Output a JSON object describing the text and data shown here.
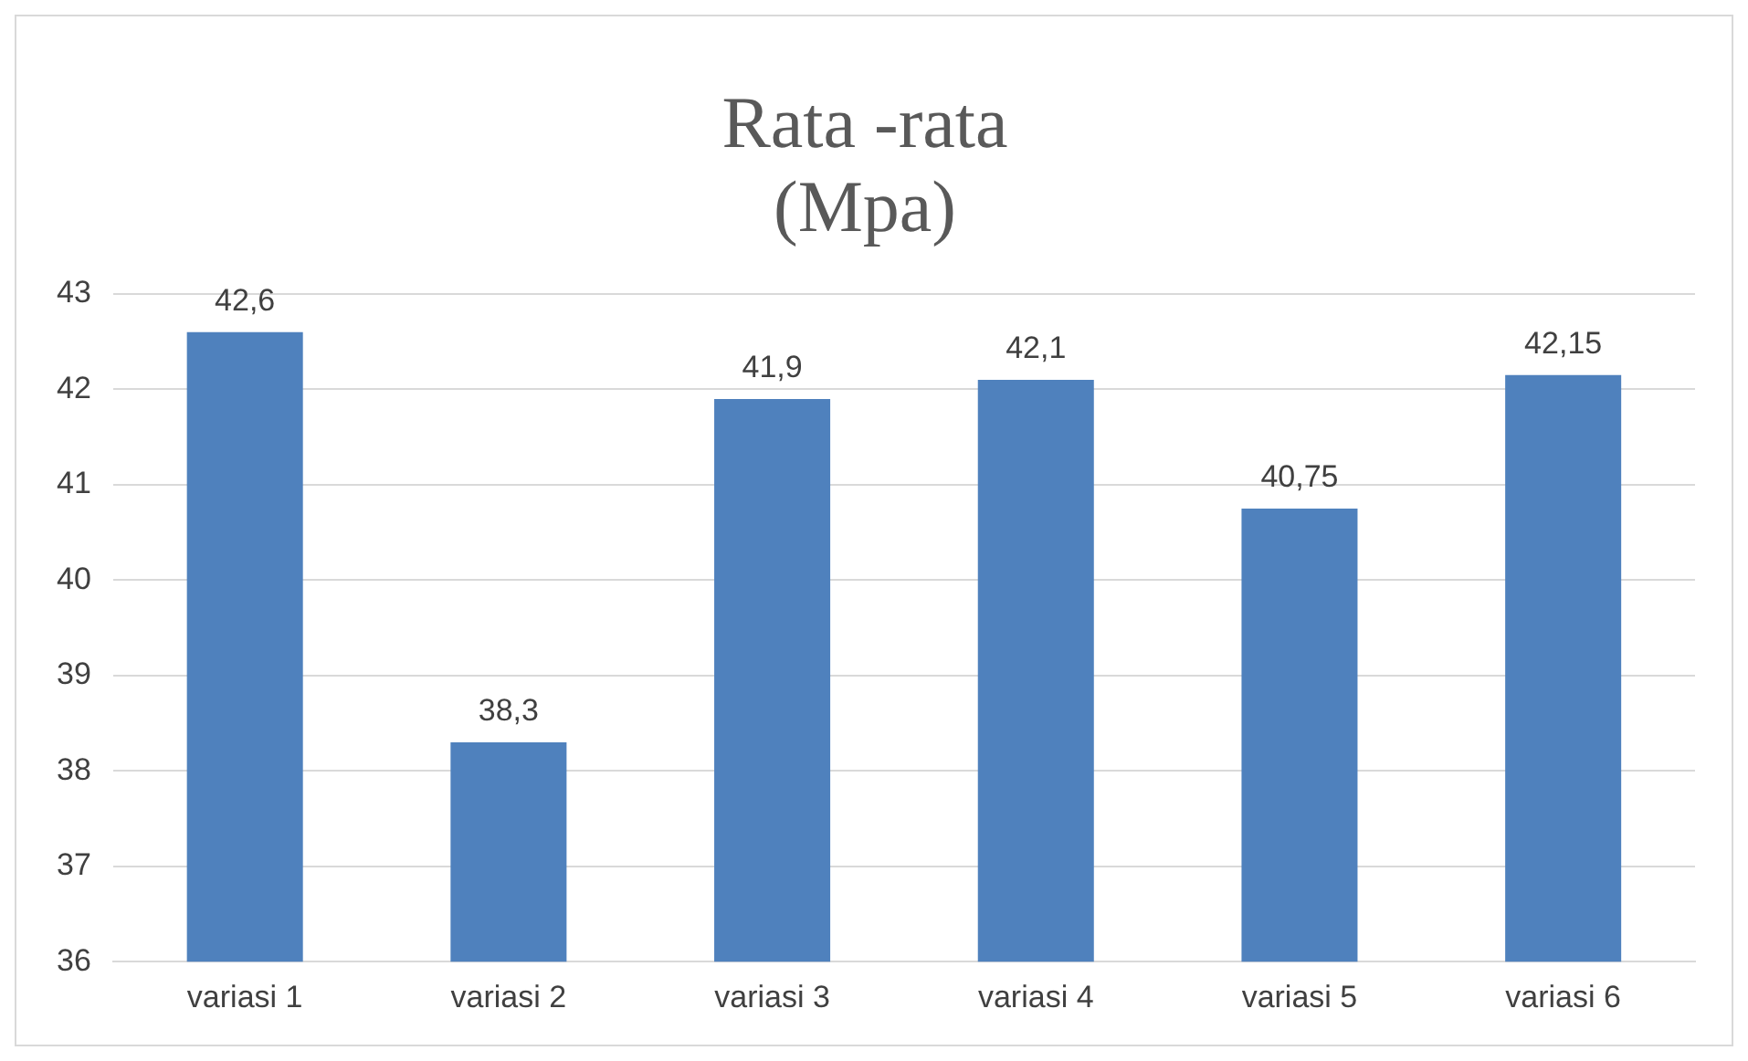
{
  "chart_data": {
    "type": "bar",
    "title": "Rata -rata\n(Mpa)",
    "categories": [
      "variasi 1",
      "variasi 2",
      "variasi 3",
      "variasi 4",
      "variasi 5",
      "variasi 6"
    ],
    "values": [
      42.6,
      38.3,
      41.9,
      42.1,
      40.75,
      42.15
    ],
    "value_labels": [
      "42,6",
      "38,3",
      "41,9",
      "42,1",
      "40,75",
      "42,15"
    ],
    "color": "#4f81bd",
    "ylim": [
      36,
      43
    ],
    "yticks": [
      36,
      37,
      38,
      39,
      40,
      41,
      42,
      43
    ],
    "grid": "y",
    "legend": false
  }
}
